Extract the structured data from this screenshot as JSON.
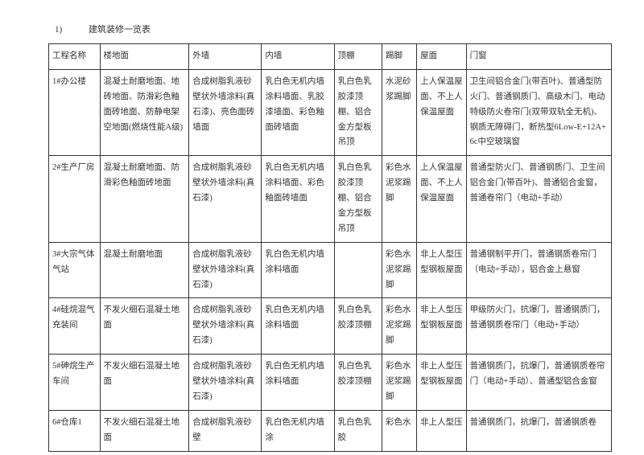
{
  "title_num": "1)",
  "title_text": "建筑装修一览表",
  "columns": [
    "工程名称",
    "楼地面",
    "外墙",
    "内墙",
    "顶棚",
    "踢脚",
    "屋面",
    "门窗"
  ],
  "rows": [
    {
      "c0": "1#办公楼",
      "c1": "混凝土耐磨地面、地砖地面、防滑彩色釉面砖地面、防静电架空地面(燃烧性能A级)",
      "c2": "合成树脂乳液砂壁状外墙涂料(真石漆)、亮色面砖墙面",
      "c3": "乳白色无机内墙涂料墙面、乳胶漆墙面、彩色釉面砖墙面",
      "c4": "乳白色乳胶漆顶棚、铝合金方型板吊顶",
      "c5": "水泥砂浆踢脚",
      "c6": "上人保温屋面、不上人保温屋面",
      "c7": "卫生间铝合金门(带百叶)、普通型防火门、普通钢质门、高级木门、电动特级防火卷帘门(双带双轨全无机)、钢质无障碍门，断热型6Low-E+12A+6c中空玻璃窗"
    },
    {
      "c0": "2#生产厂房",
      "c1": "混凝土耐磨地面、防滑彩色釉面砖地面",
      "c2": "合成树脂乳液砂壁状外墙涂料(真石漆)",
      "c3": "乳白色无机内墙涂料墙面、彩色釉面砖墙面",
      "c4": "乳白色乳胶漆顶棚、铝合金方型板吊顶",
      "c5": "彩色水泥浆踢脚",
      "c6": "上人保温屋面、不上人保温屋面",
      "c7": "普通型防火门、普通钢质门、卫生间铝合金门(带百叶)、普通铝合金窗，普通卷帘门（电动+手动）"
    },
    {
      "c0": "3#大宗气体气站",
      "c1": "混凝土耐磨地面",
      "c2": "合成树脂乳液砂壁状外墙涂料(真石漆)",
      "c3": "乳白色无机内墙涂料墙面",
      "c4": "",
      "c5": "彩色水泥浆踢脚",
      "c6": "非上人型压型钢板屋面",
      "c7": "普通钢制平开门，普通钢质卷帘门（电动+手动），铝合金上悬窗"
    },
    {
      "c0": "4#硅烷混气充装间",
      "c1": "不发火细石混凝土地面",
      "c2": "合成树脂乳液砂壁状外墙涂料(真石漆)",
      "c3": "乳白色无机内墙涂料墙面",
      "c4": "乳白色乳胶漆顶棚",
      "c5": "彩色水泥浆踢脚",
      "c6": "非上人型压型钢板屋面",
      "c7": "甲级防火门，抗爆门，普通钢质门，普通钢质卷帘门（电动+手动）"
    },
    {
      "c0": "5#砷烷生产车间",
      "c1": "不发火细石混凝土地面",
      "c2": "合成树脂乳液砂壁状外墙涂料(真石漆)",
      "c3": "乳白色无机内墙涂料墙面",
      "c4": "乳白色乳胶漆顶棚",
      "c5": "彩色水泥浆踢脚",
      "c6": "非上人型压型钢板屋面",
      "c7": "普通钢质门，抗爆门，普通钢质卷帘门（电动+手动）、普通型铝合金窗"
    },
    {
      "c0": "6#仓库1",
      "c1": "不发火细石混凝土地面",
      "c2": "合成树脂乳液砂壁",
      "c3": "乳白色无机内墙涂",
      "c4": "乳白色乳胶",
      "c5": "彩色水",
      "c6": "非上人型压",
      "c7": "普通钢质门，抗爆门，普通钢质卷"
    }
  ]
}
